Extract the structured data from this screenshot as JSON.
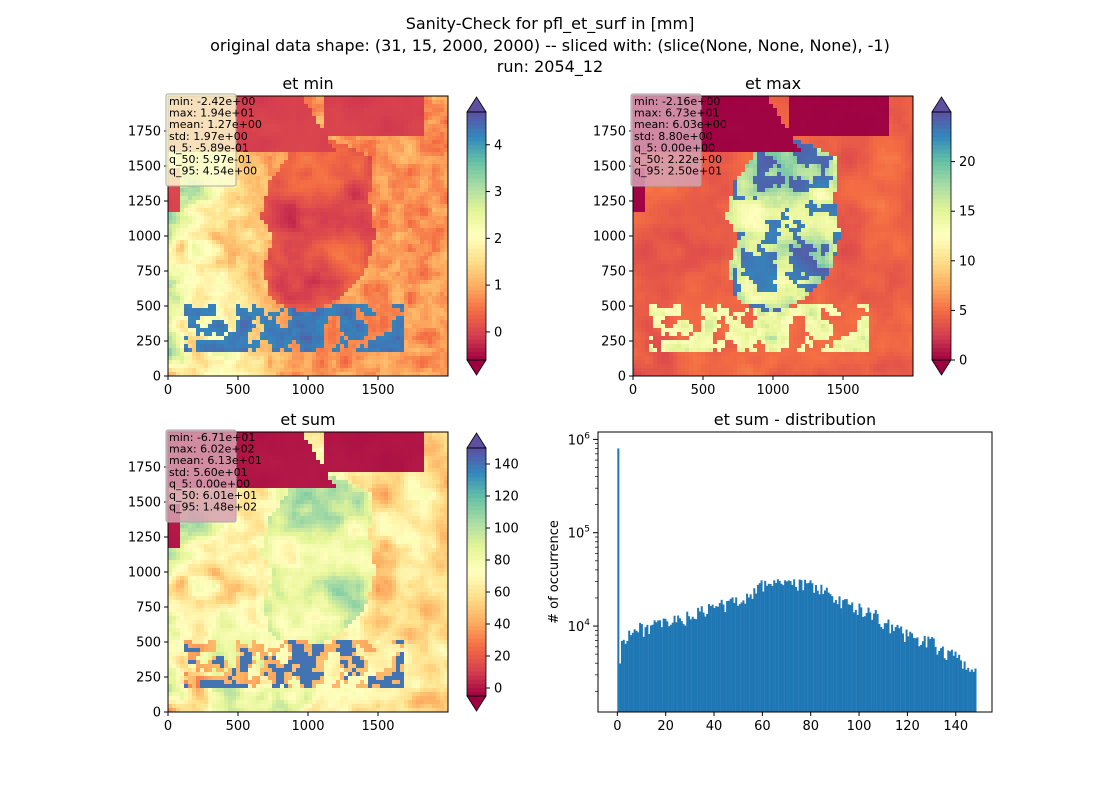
{
  "figure": {
    "title_lines": [
      "Sanity-Check for pfl_et_surf in [mm]",
      "original data shape: (31, 15, 2000, 2000) -- sliced with: (slice(None, None, None), -1)",
      "run: 2054_12"
    ]
  },
  "chart_data": [
    {
      "type": "heatmap",
      "title": "et min",
      "xlim": [
        0,
        2000
      ],
      "ylim": [
        0,
        2000
      ],
      "xticks": [
        0,
        500,
        1000,
        1500
      ],
      "yticks": [
        0,
        250,
        500,
        750,
        1000,
        1250,
        1500,
        1750
      ],
      "colormap": "Spectral",
      "colorbar": {
        "range": [
          -0.6,
          4.7
        ],
        "ticks": [
          0,
          1,
          2,
          3,
          4
        ],
        "extend": "both"
      },
      "stats": [
        "min: -2.42e+00",
        "max: 1.94e+01",
        "mean: 1.27e+00",
        "std: 1.97e+00",
        "q_5: -5.89e-01",
        "q_50: 5.97e-01",
        "q_95: 4.54e+00"
      ],
      "stats_box_color": "#fbfbcf"
    },
    {
      "type": "heatmap",
      "title": "et max",
      "xlim": [
        0,
        2000
      ],
      "ylim": [
        0,
        2000
      ],
      "xticks": [
        0,
        500,
        1000,
        1500
      ],
      "yticks": [
        0,
        250,
        500,
        750,
        1000,
        1250,
        1500,
        1750
      ],
      "colormap": "Spectral",
      "colorbar": {
        "range": [
          0,
          25
        ],
        "ticks": [
          0,
          5,
          10,
          15,
          20
        ],
        "extend": "both"
      },
      "stats": [
        "min: -2.16e+00",
        "max: 6.73e+01",
        "mean: 6.03e+00",
        "std: 8.80e+00",
        "q_5: 0.00e+00",
        "q_50: 2.22e+00",
        "q_95: 2.50e+01"
      ],
      "stats_box_color": "#d7a1b3"
    },
    {
      "type": "heatmap",
      "title": "et sum",
      "xlim": [
        0,
        2000
      ],
      "ylim": [
        0,
        2000
      ],
      "xticks": [
        0,
        500,
        1000,
        1500
      ],
      "yticks": [
        0,
        250,
        500,
        750,
        1000,
        1250,
        1500,
        1750
      ],
      "colormap": "Spectral",
      "colorbar": {
        "range": [
          -5,
          150
        ],
        "ticks": [
          0,
          20,
          40,
          60,
          80,
          100,
          120,
          140
        ],
        "extend": "both"
      },
      "stats": [
        "min: -6.71e+01",
        "max: 6.02e+02",
        "mean: 6.13e+01",
        "std: 5.60e+01",
        "q_5: 0.00e+00",
        "q_50: 6.01e+01",
        "q_95: 1.48e+02"
      ],
      "stats_box_color": "#d7a1b3"
    },
    {
      "type": "bar",
      "title": "et sum - distribution",
      "ylabel": "# of occurrence",
      "yscale": "log",
      "xlim": [
        -8,
        155
      ],
      "ylim": [
        1200,
        1200000
      ],
      "xticks": [
        0,
        20,
        40,
        60,
        80,
        100,
        120,
        140
      ],
      "yticks": [
        {
          "value": 10000,
          "base": "10",
          "exp": "4"
        },
        {
          "value": 100000,
          "base": "10",
          "exp": "5"
        },
        {
          "value": 1000000,
          "base": "10",
          "exp": "6"
        }
      ],
      "color": "#1f77b4",
      "bin_width": 0.75,
      "profile": {
        "x": [
          0,
          0.75,
          1.5,
          3,
          5,
          8,
          12,
          16,
          20,
          25,
          30,
          35,
          40,
          45,
          50,
          55,
          60,
          63,
          66,
          70,
          75,
          80,
          85,
          88,
          92,
          96,
          100,
          105,
          110,
          115,
          120,
          125,
          130,
          135,
          140,
          145,
          147.5
        ],
        "y": [
          800000,
          3000,
          6000,
          7500,
          8500,
          9000,
          9500,
          10000,
          10500,
          11500,
          12500,
          14000,
          16000,
          17000,
          19000,
          22000,
          27000,
          30000,
          31000,
          28000,
          27000,
          28000,
          24000,
          21000,
          18000,
          18000,
          15000,
          14000,
          11000,
          9000,
          8000,
          7000,
          6500,
          5500,
          4500,
          4000,
          3000
        ]
      }
    }
  ]
}
